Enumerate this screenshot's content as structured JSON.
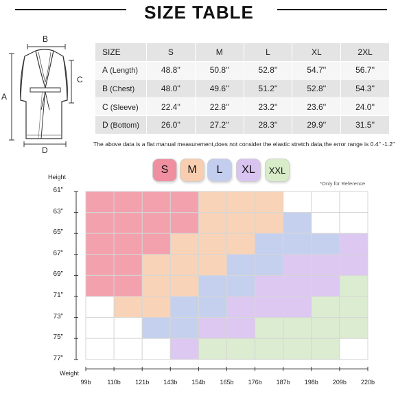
{
  "header": {
    "title": "SIZE TABLE"
  },
  "table": {
    "columns": [
      "SIZE",
      "S",
      "M",
      "L",
      "XL",
      "2XL"
    ],
    "rows": [
      {
        "letter": "A",
        "name": "(Length)",
        "values": [
          "48.8''",
          "50.8''",
          "52.8''",
          "54.7''",
          "56.7''"
        ]
      },
      {
        "letter": "B",
        "name": "(Chest)",
        "values": [
          "48.0''",
          "49.6''",
          "51.2''",
          "52.8''",
          "54.3''"
        ]
      },
      {
        "letter": "C",
        "name": "(Sleeve)",
        "values": [
          "22.4''",
          "22.8''",
          "23.2''",
          "23.6''",
          "24.0''"
        ]
      },
      {
        "letter": "D",
        "name": "(Bottom)",
        "values": [
          "26.0''",
          "27.2''",
          "28.3''",
          "29.9''",
          "31.5''"
        ]
      }
    ]
  },
  "garment": {
    "label_a": "A",
    "label_b": "B",
    "label_c": "C",
    "label_d": "D",
    "icon": "robe-icon"
  },
  "note": "The above data is a flat manual measurement,does not consider the elastic stretch data,the error range is 0.4'' -1.2''",
  "badges": [
    {
      "label": "S",
      "color": "#ef8fa0"
    },
    {
      "label": "M",
      "color": "#f8cdb0"
    },
    {
      "label": "L",
      "color": "#c3cdee"
    },
    {
      "label": "XL",
      "color": "#d9c3f0"
    },
    {
      "label": "XXL",
      "color": "#d9ecc9"
    }
  ],
  "reference_note": "*Only for Reference",
  "chart_data": {
    "type": "heatmap",
    "y_title": "Height",
    "x_title": "Weight",
    "y_labels": [
      "61”",
      "63”",
      "65”",
      "67”",
      "69”",
      "71”",
      "73”",
      "75”",
      "77”"
    ],
    "x_labels": [
      "99b",
      "110b",
      "121b",
      "143b",
      "154b",
      "165b",
      "176b",
      "187b",
      "198b",
      "209b",
      "220b"
    ],
    "colors": {
      "S": "#f2a1ad",
      "M": "#f9d3b7",
      "L": "#c5d0ef",
      "XL": "#dcc8f1",
      "XXL": "#dbecd0",
      "none": "#ffffff"
    },
    "grid": [
      [
        "S",
        "S",
        "S",
        "S",
        "M",
        "M",
        "M",
        "none",
        "none",
        "none"
      ],
      [
        "S",
        "S",
        "S",
        "S",
        "M",
        "M",
        "M",
        "L",
        "none",
        "none"
      ],
      [
        "S",
        "S",
        "S",
        "M",
        "M",
        "M",
        "L",
        "L",
        "L",
        "XL"
      ],
      [
        "S",
        "S",
        "M",
        "M",
        "M",
        "L",
        "L",
        "XL",
        "XL",
        "XL"
      ],
      [
        "S",
        "S",
        "M",
        "M",
        "L",
        "L",
        "XL",
        "XL",
        "XL",
        "XXL"
      ],
      [
        "none",
        "M",
        "M",
        "L",
        "L",
        "XL",
        "XL",
        "XL",
        "XXL",
        "XXL"
      ],
      [
        "none",
        "none",
        "L",
        "L",
        "XL",
        "XL",
        "XXL",
        "XXL",
        "XXL",
        "XXL"
      ],
      [
        "none",
        "none",
        "none",
        "XL",
        "XXL",
        "XXL",
        "XXL",
        "XXL",
        "XXL",
        "none"
      ]
    ]
  }
}
